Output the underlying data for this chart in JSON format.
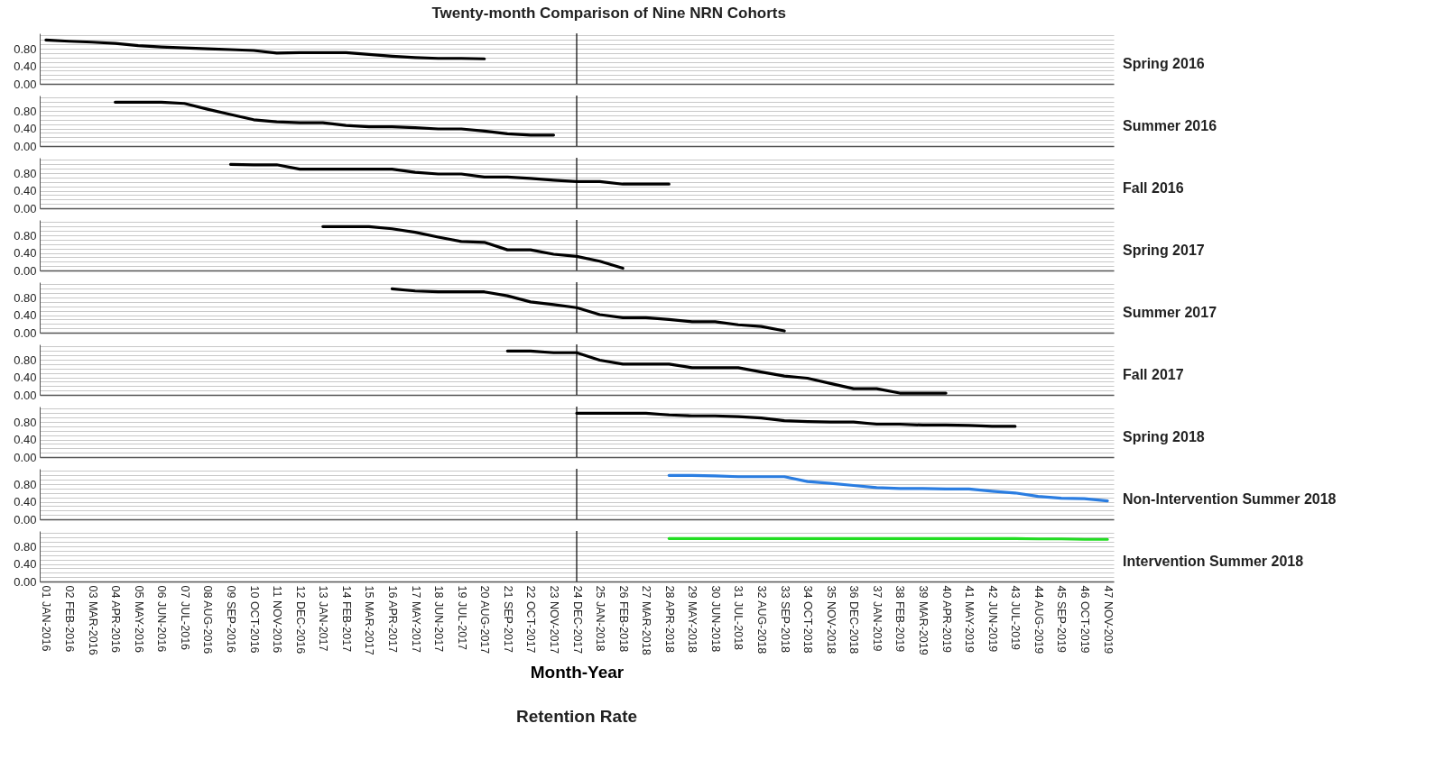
{
  "chart_data": [
    {
      "type": "line",
      "title": "Twenty-month Comparison of Nine NRN Cohorts",
      "categories": [
        "01 JAN-2016",
        "02 FEB-2016",
        "03 MAR-2016",
        "04 APR-2016",
        "05 MAY-2016",
        "06 JUN-2016",
        "07 JUL-2016",
        "08 AUG-2016",
        "09 SEP-2016",
        "10 OCT-2016",
        "11 NOV-2016",
        "12 DEC-2016",
        "13 JAN-2017",
        "14 FEB-2017",
        "15 MAR-2017",
        "16 APR-2017",
        "17 MAY-2017",
        "18 JUN-2017",
        "19 JUL-2017",
        "20 AUG-2017",
        "21 SEP-2017",
        "22 OCT-2017",
        "23 NOV-2017",
        "24 DEC-2017",
        "25 JAN-2018",
        "26 FEB-2018",
        "27 MAR-2018",
        "28 APR-2018",
        "29 MAY-2018",
        "30 JUN-2018",
        "31 JUL-2018",
        "32 AUG-2018",
        "33 SEP-2018",
        "34 OCT-2018",
        "35 NOV-2018",
        "36 DEC-2018",
        "37 JAN-2019",
        "38 FEB-2019",
        "39 MAR-2019",
        "40 APR-2019",
        "41 MAY-2019",
        "42 JUN-2019",
        "43 JUL-2019",
        "44 AUG-2019",
        "45 SEP-2019",
        "46 OCT-2019",
        "47 NOV-2019"
      ],
      "series": [
        {
          "name": "Spring 2016",
          "color": "#000000",
          "values": [
            1.0,
            0.97,
            0.95,
            0.92,
            0.87,
            0.84,
            0.82,
            0.8,
            0.78,
            0.76,
            0.7,
            0.71,
            0.71,
            0.71,
            0.67,
            0.63,
            0.6,
            0.58,
            0.58,
            0.57,
            null,
            null,
            null,
            null,
            null,
            null,
            null,
            null,
            null,
            null,
            null,
            null,
            null,
            null,
            null,
            null,
            null,
            null,
            null,
            null,
            null,
            null,
            null,
            null,
            null,
            null,
            null
          ]
        }
      ],
      "ylim": [
        0,
        1.15
      ],
      "yticks": [
        {
          "value": 0,
          "label": "0.00"
        },
        {
          "value": 0.1,
          "label": null
        },
        {
          "value": 0.2,
          "label": null
        },
        {
          "value": 0.3,
          "label": null
        },
        {
          "value": 0.4,
          "label": "0.40"
        },
        {
          "value": 0.5,
          "label": null
        },
        {
          "value": 0.6,
          "label": null
        },
        {
          "value": 0.7,
          "label": null
        },
        {
          "value": 0.8,
          "label": "0.80"
        },
        {
          "value": 0.9,
          "label": null
        },
        {
          "value": 1.0,
          "label": null
        },
        {
          "value": 1.1,
          "label": null
        }
      ],
      "grid": "y",
      "tick_labels": "y",
      "ref_lines": [
        {
          "axis": "x",
          "value": "24 DEC-2017",
          "label": null
        }
      ]
    },
    {
      "type": "line",
      "categories": [
        "01 JAN-2016",
        "02 FEB-2016",
        "03 MAR-2016",
        "04 APR-2016",
        "05 MAY-2016",
        "06 JUN-2016",
        "07 JUL-2016",
        "08 AUG-2016",
        "09 SEP-2016",
        "10 OCT-2016",
        "11 NOV-2016",
        "12 DEC-2016",
        "13 JAN-2017",
        "14 FEB-2017",
        "15 MAR-2017",
        "16 APR-2017",
        "17 MAY-2017",
        "18 JUN-2017",
        "19 JUL-2017",
        "20 AUG-2017",
        "21 SEP-2017",
        "22 OCT-2017",
        "23 NOV-2017",
        "24 DEC-2017",
        "25 JAN-2018",
        "26 FEB-2018",
        "27 MAR-2018",
        "28 APR-2018",
        "29 MAY-2018",
        "30 JUN-2018",
        "31 JUL-2018",
        "32 AUG-2018",
        "33 SEP-2018",
        "34 OCT-2018",
        "35 NOV-2018",
        "36 DEC-2018",
        "37 JAN-2019",
        "38 FEB-2019",
        "39 MAR-2019",
        "40 APR-2019",
        "41 MAY-2019",
        "42 JUN-2019",
        "43 JUL-2019",
        "44 AUG-2019",
        "45 SEP-2019",
        "46 OCT-2019",
        "47 NOV-2019"
      ],
      "series": [
        {
          "name": "Summer 2016",
          "color": "#000000",
          "values": [
            null,
            null,
            null,
            1.0,
            1.0,
            1.0,
            0.97,
            0.84,
            0.72,
            0.6,
            0.55,
            0.53,
            0.53,
            0.47,
            0.44,
            0.44,
            0.42,
            0.39,
            0.39,
            0.34,
            0.28,
            0.25,
            0.25,
            null,
            null,
            null,
            null,
            null,
            null,
            null,
            null,
            null,
            null,
            null,
            null,
            null,
            null,
            null,
            null,
            null,
            null,
            null,
            null,
            null,
            null,
            null,
            null
          ]
        }
      ],
      "ylim": [
        0,
        1.15
      ],
      "yticks": [
        {
          "value": 0,
          "label": "0.00"
        },
        {
          "value": 0.1,
          "label": null
        },
        {
          "value": 0.2,
          "label": null
        },
        {
          "value": 0.3,
          "label": null
        },
        {
          "value": 0.4,
          "label": "0.40"
        },
        {
          "value": 0.5,
          "label": null
        },
        {
          "value": 0.6,
          "label": null
        },
        {
          "value": 0.7,
          "label": null
        },
        {
          "value": 0.8,
          "label": "0.80"
        },
        {
          "value": 0.9,
          "label": null
        },
        {
          "value": 1.0,
          "label": null
        },
        {
          "value": 1.1,
          "label": null
        }
      ],
      "grid": "y",
      "tick_labels": "y",
      "ref_lines": [
        {
          "axis": "x",
          "value": "24 DEC-2017",
          "label": null
        }
      ]
    },
    {
      "type": "line",
      "categories": [
        "01 JAN-2016",
        "02 FEB-2016",
        "03 MAR-2016",
        "04 APR-2016",
        "05 MAY-2016",
        "06 JUN-2016",
        "07 JUL-2016",
        "08 AUG-2016",
        "09 SEP-2016",
        "10 OCT-2016",
        "11 NOV-2016",
        "12 DEC-2016",
        "13 JAN-2017",
        "14 FEB-2017",
        "15 MAR-2017",
        "16 APR-2017",
        "17 MAY-2017",
        "18 JUN-2017",
        "19 JUL-2017",
        "20 AUG-2017",
        "21 SEP-2017",
        "22 OCT-2017",
        "23 NOV-2017",
        "24 DEC-2017",
        "25 JAN-2018",
        "26 FEB-2018",
        "27 MAR-2018",
        "28 APR-2018",
        "29 MAY-2018",
        "30 JUN-2018",
        "31 JUL-2018",
        "32 AUG-2018",
        "33 SEP-2018",
        "34 OCT-2018",
        "35 NOV-2018",
        "36 DEC-2018",
        "37 JAN-2019",
        "38 FEB-2019",
        "39 MAR-2019",
        "40 APR-2019",
        "41 MAY-2019",
        "42 JUN-2019",
        "43 JUL-2019",
        "44 AUG-2019",
        "45 SEP-2019",
        "46 OCT-2019",
        "47 NOV-2019"
      ],
      "series": [
        {
          "name": "Fall 2016",
          "color": "#000000",
          "values": [
            null,
            null,
            null,
            null,
            null,
            null,
            null,
            null,
            1.0,
            0.99,
            0.99,
            0.89,
            0.89,
            0.89,
            0.89,
            0.89,
            0.82,
            0.78,
            0.78,
            0.71,
            0.71,
            0.68,
            0.64,
            0.61,
            0.61,
            0.55,
            0.55,
            0.55,
            null,
            null,
            null,
            null,
            null,
            null,
            null,
            null,
            null,
            null,
            null,
            null,
            null,
            null,
            null,
            null,
            null,
            null,
            null
          ]
        }
      ],
      "ylim": [
        0,
        1.15
      ],
      "yticks": [
        {
          "value": 0,
          "label": "0.00"
        },
        {
          "value": 0.1,
          "label": null
        },
        {
          "value": 0.2,
          "label": null
        },
        {
          "value": 0.3,
          "label": null
        },
        {
          "value": 0.4,
          "label": "0.40"
        },
        {
          "value": 0.5,
          "label": null
        },
        {
          "value": 0.6,
          "label": null
        },
        {
          "value": 0.7,
          "label": null
        },
        {
          "value": 0.8,
          "label": "0.80"
        },
        {
          "value": 0.9,
          "label": null
        },
        {
          "value": 1.0,
          "label": null
        },
        {
          "value": 1.1,
          "label": null
        }
      ],
      "grid": "y",
      "tick_labels": "y",
      "ref_lines": [
        {
          "axis": "x",
          "value": "24 DEC-2017",
          "label": null
        }
      ]
    },
    {
      "type": "line",
      "categories": [
        "01 JAN-2016",
        "02 FEB-2016",
        "03 MAR-2016",
        "04 APR-2016",
        "05 MAY-2016",
        "06 JUN-2016",
        "07 JUL-2016",
        "08 AUG-2016",
        "09 SEP-2016",
        "10 OCT-2016",
        "11 NOV-2016",
        "12 DEC-2016",
        "13 JAN-2017",
        "14 FEB-2017",
        "15 MAR-2017",
        "16 APR-2017",
        "17 MAY-2017",
        "18 JUN-2017",
        "19 JUL-2017",
        "20 AUG-2017",
        "21 SEP-2017",
        "22 OCT-2017",
        "23 NOV-2017",
        "24 DEC-2017",
        "25 JAN-2018",
        "26 FEB-2018",
        "27 MAR-2018",
        "28 APR-2018",
        "29 MAY-2018",
        "30 JUN-2018",
        "31 JUL-2018",
        "32 AUG-2018",
        "33 SEP-2018",
        "34 OCT-2018",
        "35 NOV-2018",
        "36 DEC-2018",
        "37 JAN-2019",
        "38 FEB-2019",
        "39 MAR-2019",
        "40 APR-2019",
        "41 MAY-2019",
        "42 JUN-2019",
        "43 JUL-2019",
        "44 AUG-2019",
        "45 SEP-2019",
        "46 OCT-2019",
        "47 NOV-2019"
      ],
      "series": [
        {
          "name": "Spring 2017",
          "color": "#000000",
          "values": [
            null,
            null,
            null,
            null,
            null,
            null,
            null,
            null,
            null,
            null,
            null,
            null,
            1.0,
            1.0,
            1.0,
            0.95,
            0.87,
            0.76,
            0.66,
            0.64,
            0.47,
            0.47,
            0.37,
            0.32,
            0.21,
            0.05,
            null,
            null,
            null,
            null,
            null,
            null,
            null,
            null,
            null,
            null,
            null,
            null,
            null,
            null,
            null,
            null,
            null,
            null,
            null,
            null,
            null
          ]
        }
      ],
      "ylim": [
        0,
        1.15
      ],
      "yticks": [
        {
          "value": 0,
          "label": "0.00"
        },
        {
          "value": 0.1,
          "label": null
        },
        {
          "value": 0.2,
          "label": null
        },
        {
          "value": 0.3,
          "label": null
        },
        {
          "value": 0.4,
          "label": "0.40"
        },
        {
          "value": 0.5,
          "label": null
        },
        {
          "value": 0.6,
          "label": null
        },
        {
          "value": 0.7,
          "label": null
        },
        {
          "value": 0.8,
          "label": "0.80"
        },
        {
          "value": 0.9,
          "label": null
        },
        {
          "value": 1.0,
          "label": null
        },
        {
          "value": 1.1,
          "label": null
        }
      ],
      "grid": "y",
      "tick_labels": "y",
      "ref_lines": [
        {
          "axis": "x",
          "value": "24 DEC-2017",
          "label": null
        }
      ]
    },
    {
      "type": "line",
      "categories": [
        "01 JAN-2016",
        "02 FEB-2016",
        "03 MAR-2016",
        "04 APR-2016",
        "05 MAY-2016",
        "06 JUN-2016",
        "07 JUL-2016",
        "08 AUG-2016",
        "09 SEP-2016",
        "10 OCT-2016",
        "11 NOV-2016",
        "12 DEC-2016",
        "13 JAN-2017",
        "14 FEB-2017",
        "15 MAR-2017",
        "16 APR-2017",
        "17 MAY-2017",
        "18 JUN-2017",
        "19 JUL-2017",
        "20 AUG-2017",
        "21 SEP-2017",
        "22 OCT-2017",
        "23 NOV-2017",
        "24 DEC-2017",
        "25 JAN-2018",
        "26 FEB-2018",
        "27 MAR-2018",
        "28 APR-2018",
        "29 MAY-2018",
        "30 JUN-2018",
        "31 JUL-2018",
        "32 AUG-2018",
        "33 SEP-2018",
        "34 OCT-2018",
        "35 NOV-2018",
        "36 DEC-2018",
        "37 JAN-2019",
        "38 FEB-2019",
        "39 MAR-2019",
        "40 APR-2019",
        "41 MAY-2019",
        "42 JUN-2019",
        "43 JUL-2019",
        "44 AUG-2019",
        "45 SEP-2019",
        "46 OCT-2019",
        "47 NOV-2019"
      ],
      "series": [
        {
          "name": "Summer 2017",
          "color": "#000000",
          "values": [
            null,
            null,
            null,
            null,
            null,
            null,
            null,
            null,
            null,
            null,
            null,
            null,
            null,
            null,
            null,
            1.0,
            0.95,
            0.93,
            0.93,
            0.93,
            0.84,
            0.7,
            0.64,
            0.57,
            0.41,
            0.34,
            0.34,
            0.3,
            0.25,
            0.25,
            0.18,
            0.14,
            0.04,
            null,
            null,
            null,
            null,
            null,
            null,
            null,
            null,
            null,
            null,
            null,
            null,
            null,
            null
          ]
        }
      ],
      "ylim": [
        0,
        1.15
      ],
      "yticks": [
        {
          "value": 0,
          "label": "0.00"
        },
        {
          "value": 0.1,
          "label": null
        },
        {
          "value": 0.2,
          "label": null
        },
        {
          "value": 0.3,
          "label": null
        },
        {
          "value": 0.4,
          "label": "0.40"
        },
        {
          "value": 0.5,
          "label": null
        },
        {
          "value": 0.6,
          "label": null
        },
        {
          "value": 0.7,
          "label": null
        },
        {
          "value": 0.8,
          "label": "0.80"
        },
        {
          "value": 0.9,
          "label": null
        },
        {
          "value": 1.0,
          "label": null
        },
        {
          "value": 1.1,
          "label": null
        }
      ],
      "grid": "y",
      "tick_labels": "y",
      "ref_lines": [
        {
          "axis": "x",
          "value": "24 DEC-2017",
          "label": null
        }
      ]
    },
    {
      "type": "line",
      "categories": [
        "01 JAN-2016",
        "02 FEB-2016",
        "03 MAR-2016",
        "04 APR-2016",
        "05 MAY-2016",
        "06 JUN-2016",
        "07 JUL-2016",
        "08 AUG-2016",
        "09 SEP-2016",
        "10 OCT-2016",
        "11 NOV-2016",
        "12 DEC-2016",
        "13 JAN-2017",
        "14 FEB-2017",
        "15 MAR-2017",
        "16 APR-2017",
        "17 MAY-2017",
        "18 JUN-2017",
        "19 JUL-2017",
        "20 AUG-2017",
        "21 SEP-2017",
        "22 OCT-2017",
        "23 NOV-2017",
        "24 DEC-2017",
        "25 JAN-2018",
        "26 FEB-2018",
        "27 MAR-2018",
        "28 APR-2018",
        "29 MAY-2018",
        "30 JUN-2018",
        "31 JUL-2018",
        "32 AUG-2018",
        "33 SEP-2018",
        "34 OCT-2018",
        "35 NOV-2018",
        "36 DEC-2018",
        "37 JAN-2019",
        "38 FEB-2019",
        "39 MAR-2019",
        "40 APR-2019",
        "41 MAY-2019",
        "42 JUN-2019",
        "43 JUL-2019",
        "44 AUG-2019",
        "45 SEP-2019",
        "46 OCT-2019",
        "47 NOV-2019"
      ],
      "series": [
        {
          "name": "Fall 2017",
          "color": "#000000",
          "values": [
            null,
            null,
            null,
            null,
            null,
            null,
            null,
            null,
            null,
            null,
            null,
            null,
            null,
            null,
            null,
            null,
            null,
            null,
            null,
            null,
            1.0,
            1.0,
            0.96,
            0.96,
            0.79,
            0.7,
            0.7,
            0.7,
            0.62,
            0.62,
            0.62,
            0.52,
            0.43,
            0.38,
            0.26,
            0.14,
            0.14,
            0.04,
            0.04,
            0.04,
            null,
            null,
            null,
            null,
            null,
            null,
            null
          ]
        }
      ],
      "ylim": [
        0,
        1.15
      ],
      "yticks": [
        {
          "value": 0,
          "label": "0.00"
        },
        {
          "value": 0.1,
          "label": null
        },
        {
          "value": 0.2,
          "label": null
        },
        {
          "value": 0.3,
          "label": null
        },
        {
          "value": 0.4,
          "label": "0.40"
        },
        {
          "value": 0.5,
          "label": null
        },
        {
          "value": 0.6,
          "label": null
        },
        {
          "value": 0.7,
          "label": null
        },
        {
          "value": 0.8,
          "label": "0.80"
        },
        {
          "value": 0.9,
          "label": null
        },
        {
          "value": 1.0,
          "label": null
        },
        {
          "value": 1.1,
          "label": null
        }
      ],
      "grid": "y",
      "tick_labels": "y",
      "ref_lines": [
        {
          "axis": "x",
          "value": "24 DEC-2017",
          "label": null
        }
      ]
    },
    {
      "type": "line",
      "categories": [
        "01 JAN-2016",
        "02 FEB-2016",
        "03 MAR-2016",
        "04 APR-2016",
        "05 MAY-2016",
        "06 JUN-2016",
        "07 JUL-2016",
        "08 AUG-2016",
        "09 SEP-2016",
        "10 OCT-2016",
        "11 NOV-2016",
        "12 DEC-2016",
        "13 JAN-2017",
        "14 FEB-2017",
        "15 MAR-2017",
        "16 APR-2017",
        "17 MAY-2017",
        "18 JUN-2017",
        "19 JUL-2017",
        "20 AUG-2017",
        "21 SEP-2017",
        "22 OCT-2017",
        "23 NOV-2017",
        "24 DEC-2017",
        "25 JAN-2018",
        "26 FEB-2018",
        "27 MAR-2018",
        "28 APR-2018",
        "29 MAY-2018",
        "30 JUN-2018",
        "31 JUL-2018",
        "32 AUG-2018",
        "33 SEP-2018",
        "34 OCT-2018",
        "35 NOV-2018",
        "36 DEC-2018",
        "37 JAN-2019",
        "38 FEB-2019",
        "39 MAR-2019",
        "40 APR-2019",
        "41 MAY-2019",
        "42 JUN-2019",
        "43 JUL-2019",
        "44 AUG-2019",
        "45 SEP-2019",
        "46 OCT-2019",
        "47 NOV-2019"
      ],
      "series": [
        {
          "name": "Spring 2018",
          "color": "#000000",
          "values": [
            null,
            null,
            null,
            null,
            null,
            null,
            null,
            null,
            null,
            null,
            null,
            null,
            null,
            null,
            null,
            null,
            null,
            null,
            null,
            null,
            null,
            null,
            null,
            1.0,
            1.0,
            1.0,
            1.0,
            0.96,
            0.94,
            0.94,
            0.92,
            0.89,
            0.83,
            0.81,
            0.8,
            0.8,
            0.75,
            0.75,
            0.73,
            0.73,
            0.72,
            0.7,
            0.7,
            null,
            null,
            null,
            null
          ]
        }
      ],
      "ylim": [
        0,
        1.15
      ],
      "yticks": [
        {
          "value": 0,
          "label": "0.00"
        },
        {
          "value": 0.1,
          "label": null
        },
        {
          "value": 0.2,
          "label": null
        },
        {
          "value": 0.3,
          "label": null
        },
        {
          "value": 0.4,
          "label": "0.40"
        },
        {
          "value": 0.5,
          "label": null
        },
        {
          "value": 0.6,
          "label": null
        },
        {
          "value": 0.7,
          "label": null
        },
        {
          "value": 0.8,
          "label": "0.80"
        },
        {
          "value": 0.9,
          "label": null
        },
        {
          "value": 1.0,
          "label": null
        },
        {
          "value": 1.1,
          "label": null
        }
      ],
      "grid": "y",
      "tick_labels": "y",
      "ref_lines": [
        {
          "axis": "x",
          "value": "24 DEC-2017",
          "label": null
        }
      ]
    },
    {
      "type": "line",
      "categories": [
        "01 JAN-2016",
        "02 FEB-2016",
        "03 MAR-2016",
        "04 APR-2016",
        "05 MAY-2016",
        "06 JUN-2016",
        "07 JUL-2016",
        "08 AUG-2016",
        "09 SEP-2016",
        "10 OCT-2016",
        "11 NOV-2016",
        "12 DEC-2016",
        "13 JAN-2017",
        "14 FEB-2017",
        "15 MAR-2017",
        "16 APR-2017",
        "17 MAY-2017",
        "18 JUN-2017",
        "19 JUL-2017",
        "20 AUG-2017",
        "21 SEP-2017",
        "22 OCT-2017",
        "23 NOV-2017",
        "24 DEC-2017",
        "25 JAN-2018",
        "26 FEB-2018",
        "27 MAR-2018",
        "28 APR-2018",
        "29 MAY-2018",
        "30 JUN-2018",
        "31 JUL-2018",
        "32 AUG-2018",
        "33 SEP-2018",
        "34 OCT-2018",
        "35 NOV-2018",
        "36 DEC-2018",
        "37 JAN-2019",
        "38 FEB-2019",
        "39 MAR-2019",
        "40 APR-2019",
        "41 MAY-2019",
        "42 JUN-2019",
        "43 JUL-2019",
        "44 AUG-2019",
        "45 SEP-2019",
        "46 OCT-2019",
        "47 NOV-2019"
      ],
      "series": [
        {
          "name": "Non-Intervention Summer 2018",
          "color": "#2a7de1",
          "values": [
            null,
            null,
            null,
            null,
            null,
            null,
            null,
            null,
            null,
            null,
            null,
            null,
            null,
            null,
            null,
            null,
            null,
            null,
            null,
            null,
            null,
            null,
            null,
            null,
            null,
            null,
            null,
            1.0,
            1.0,
            0.99,
            0.97,
            0.97,
            0.97,
            0.86,
            0.82,
            0.77,
            0.72,
            0.7,
            0.7,
            0.69,
            0.69,
            0.64,
            0.6,
            0.52,
            0.48,
            0.47,
            0.42
          ]
        }
      ],
      "ylim": [
        0,
        1.15
      ],
      "yticks": [
        {
          "value": 0,
          "label": "0.00"
        },
        {
          "value": 0.1,
          "label": null
        },
        {
          "value": 0.2,
          "label": null
        },
        {
          "value": 0.3,
          "label": null
        },
        {
          "value": 0.4,
          "label": "0.40"
        },
        {
          "value": 0.5,
          "label": null
        },
        {
          "value": 0.6,
          "label": null
        },
        {
          "value": 0.7,
          "label": null
        },
        {
          "value": 0.8,
          "label": "0.80"
        },
        {
          "value": 0.9,
          "label": null
        },
        {
          "value": 1.0,
          "label": null
        },
        {
          "value": 1.1,
          "label": null
        }
      ],
      "grid": "y",
      "tick_labels": "y",
      "ref_lines": [
        {
          "axis": "x",
          "value": "24 DEC-2017",
          "label": null
        }
      ]
    },
    {
      "type": "line",
      "xlabel": "Month-Year",
      "annotations": [
        "Retention Rate"
      ],
      "categories": [
        "01 JAN-2016",
        "02 FEB-2016",
        "03 MAR-2016",
        "04 APR-2016",
        "05 MAY-2016",
        "06 JUN-2016",
        "07 JUL-2016",
        "08 AUG-2016",
        "09 SEP-2016",
        "10 OCT-2016",
        "11 NOV-2016",
        "12 DEC-2016",
        "13 JAN-2017",
        "14 FEB-2017",
        "15 MAR-2017",
        "16 APR-2017",
        "17 MAY-2017",
        "18 JUN-2017",
        "19 JUL-2017",
        "20 AUG-2017",
        "21 SEP-2017",
        "22 OCT-2017",
        "23 NOV-2017",
        "24 DEC-2017",
        "25 JAN-2018",
        "26 FEB-2018",
        "27 MAR-2018",
        "28 APR-2018",
        "29 MAY-2018",
        "30 JUN-2018",
        "31 JUL-2018",
        "32 AUG-2018",
        "33 SEP-2018",
        "34 OCT-2018",
        "35 NOV-2018",
        "36 DEC-2018",
        "37 JAN-2019",
        "38 FEB-2019",
        "39 MAR-2019",
        "40 APR-2019",
        "41 MAY-2019",
        "42 JUN-2019",
        "43 JUL-2019",
        "44 AUG-2019",
        "45 SEP-2019",
        "46 OCT-2019",
        "47 NOV-2019"
      ],
      "series": [
        {
          "name": "Intervention Summer 2018",
          "color": "#22dd22",
          "values": [
            null,
            null,
            null,
            null,
            null,
            null,
            null,
            null,
            null,
            null,
            null,
            null,
            null,
            null,
            null,
            null,
            null,
            null,
            null,
            null,
            null,
            null,
            null,
            null,
            null,
            null,
            null,
            0.98,
            0.98,
            0.98,
            0.98,
            0.98,
            0.98,
            0.98,
            0.98,
            0.98,
            0.98,
            0.98,
            0.98,
            0.98,
            0.98,
            0.98,
            0.98,
            0.97,
            0.97,
            0.96,
            0.96
          ]
        }
      ],
      "ylim": [
        0,
        1.15
      ],
      "yticks": [
        {
          "value": 0,
          "label": "0.00"
        },
        {
          "value": 0.1,
          "label": null
        },
        {
          "value": 0.2,
          "label": null
        },
        {
          "value": 0.3,
          "label": null
        },
        {
          "value": 0.4,
          "label": "0.40"
        },
        {
          "value": 0.5,
          "label": null
        },
        {
          "value": 0.6,
          "label": null
        },
        {
          "value": 0.7,
          "label": null
        },
        {
          "value": 0.8,
          "label": "0.80"
        },
        {
          "value": 0.9,
          "label": null
        },
        {
          "value": 1.0,
          "label": null
        },
        {
          "value": 1.1,
          "label": null
        }
      ],
      "grid": "y",
      "ref_lines": [
        {
          "axis": "x",
          "value": "24 DEC-2017",
          "label": null
        }
      ]
    }
  ]
}
